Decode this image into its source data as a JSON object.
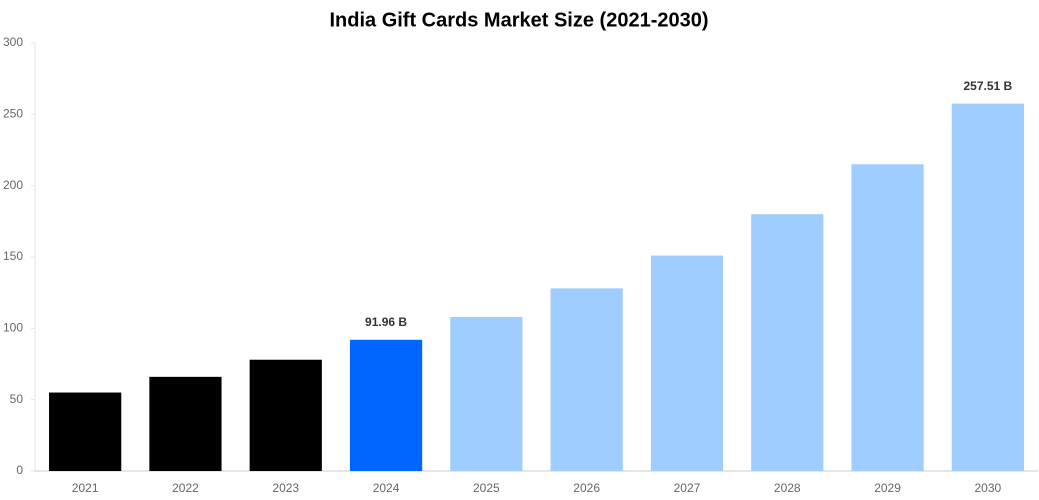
{
  "chart_data": {
    "type": "bar",
    "title": "India Gift Cards Market Size (2021-2030)",
    "categories": [
      "2021",
      "2022",
      "2023",
      "2024",
      "2025",
      "2026",
      "2027",
      "2028",
      "2029",
      "2030"
    ],
    "values": [
      55,
      66,
      78,
      91.96,
      108,
      128,
      151,
      180,
      215,
      257.51
    ],
    "value_labels": [
      null,
      null,
      null,
      "91.96 B",
      null,
      null,
      null,
      null,
      null,
      "257.51 B"
    ],
    "colors": [
      "#000000",
      "#000000",
      "#000000",
      "#0066ff",
      "#a0cdff",
      "#a0cdff",
      "#a0cdff",
      "#a0cdff",
      "#a0cdff",
      "#a0cdff"
    ],
    "ylim": [
      0,
      300
    ],
    "yticks": [
      0,
      50,
      100,
      150,
      200,
      250,
      300
    ],
    "grid": false
  }
}
